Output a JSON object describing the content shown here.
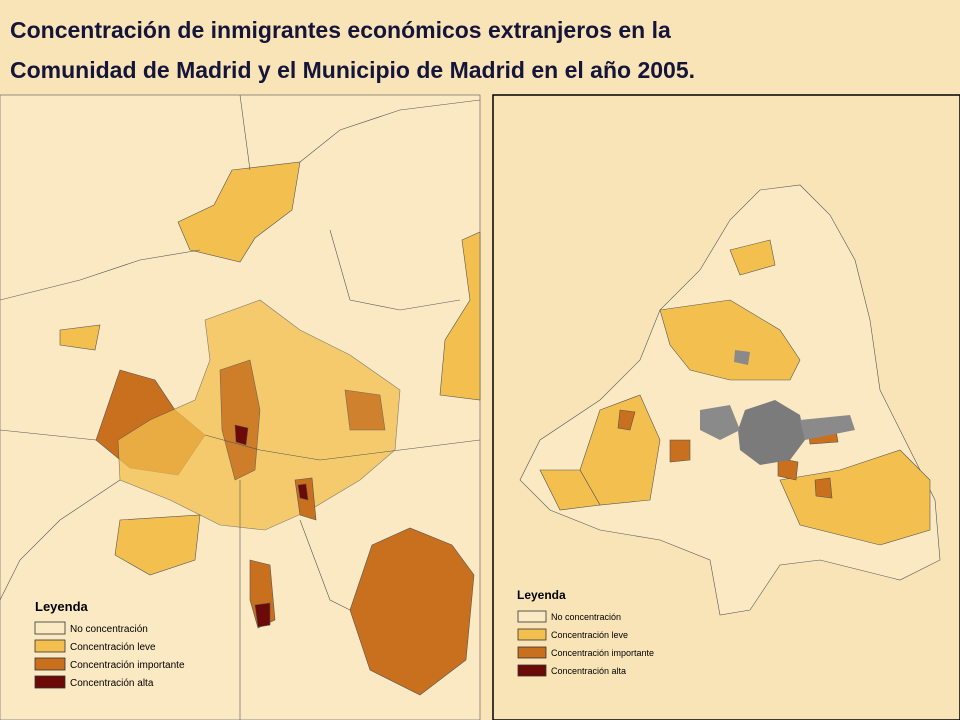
{
  "title": {
    "lines": [
      "Concentración de inmigrantes económicos extranjeros en la",
      "Comunidad de Madrid y el Municipio de Madrid en el año 2005."
    ]
  },
  "left_legend": {
    "title": "Leyenda",
    "items": [
      {
        "label": "No concentración",
        "color": "#fbe9c4"
      },
      {
        "label": "Concentración leve",
        "color": "#f3c04f"
      },
      {
        "label": "Concentración importante",
        "color": "#c8701e"
      },
      {
        "label": "Concentración alta",
        "color": "#6b0a06"
      }
    ]
  },
  "right_legend": {
    "title": "Leyenda",
    "items": [
      {
        "label": "No concentración",
        "color": "#fbe9c4"
      },
      {
        "label": "Concentración leve",
        "color": "#f3c04f"
      },
      {
        "label": "Concentración importante",
        "color": "#c8701e"
      },
      {
        "label": "Concentración alta",
        "color": "#6b0a06"
      }
    ]
  }
}
